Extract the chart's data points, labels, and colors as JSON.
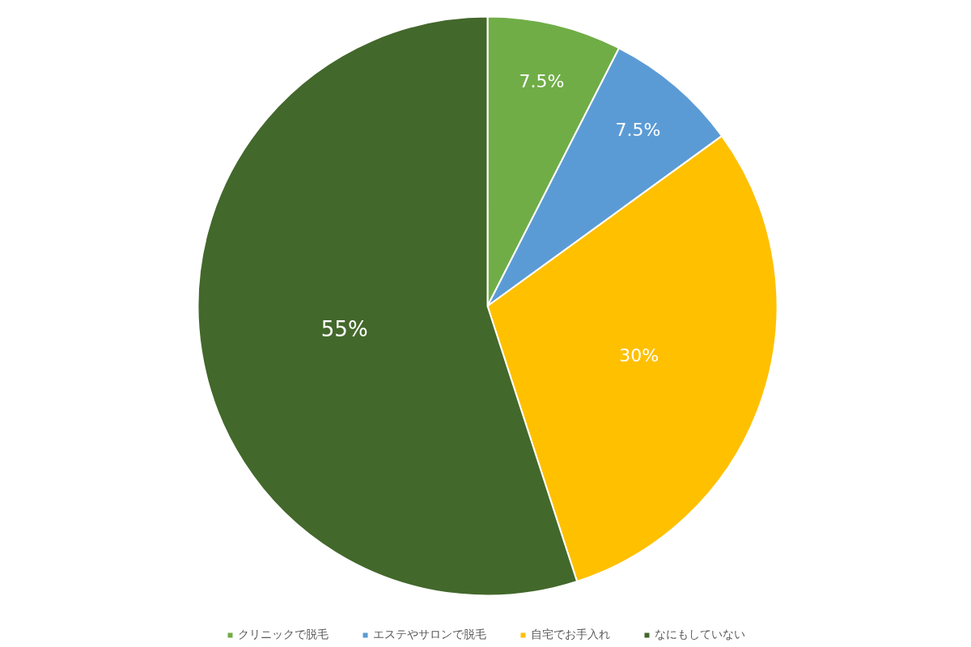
{
  "chart_data": {
    "type": "pie",
    "categories": [
      "クリニックで脱毛",
      "エステやサロンで脱毛",
      "自宅でお手入れ",
      "なにもしていない"
    ],
    "values": [
      7.5,
      7.5,
      30,
      55
    ],
    "colors": [
      "#70ad47",
      "#5b9bd5",
      "#ffc000",
      "#43682b"
    ],
    "value_labels": [
      "7.5%",
      "7.5%",
      "30%",
      "55%"
    ],
    "legend": "bottom"
  }
}
